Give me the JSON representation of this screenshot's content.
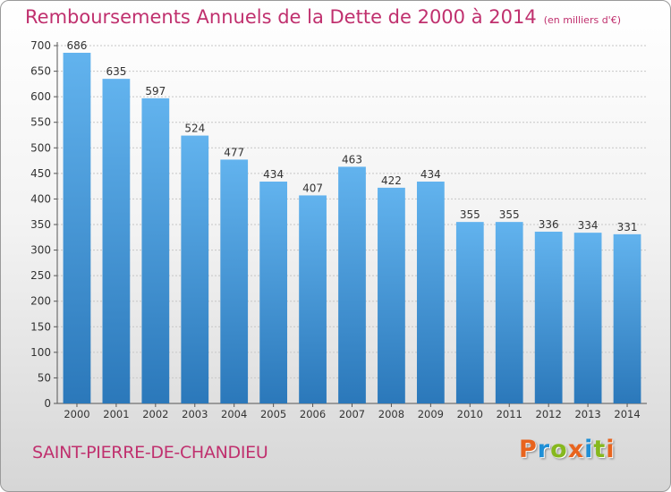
{
  "chart_data": {
    "type": "bar",
    "title": "Remboursements Annuels de la Dette de 2000 à 2014",
    "title_unit": "(en milliers d'€)",
    "xlabel": "",
    "ylabel": "",
    "ylim": [
      0,
      700
    ],
    "ytick_step": 50,
    "grid": true,
    "categories": [
      "2000",
      "2001",
      "2002",
      "2003",
      "2004",
      "2005",
      "2006",
      "2007",
      "2008",
      "2009",
      "2010",
      "2011",
      "2012",
      "2013",
      "2014"
    ],
    "values": [
      686,
      635,
      597,
      524,
      477,
      434,
      407,
      463,
      422,
      434,
      355,
      355,
      336,
      334,
      331
    ]
  },
  "footer": {
    "commune": "SAINT-PIERRE-DE-CHANDIEU"
  },
  "logo": {
    "letters": [
      "P",
      "r",
      "o",
      "x",
      "i",
      "t",
      "i"
    ],
    "colors": [
      "#e8641e",
      "#1f8fd6",
      "#86b81e",
      "#e8641e",
      "#1f8fd6",
      "#86b81e",
      "#e8641e"
    ]
  },
  "colors": {
    "title": "#c0306e",
    "bar_top": "#62b3ee",
    "bar_bottom": "#2b78ba"
  }
}
